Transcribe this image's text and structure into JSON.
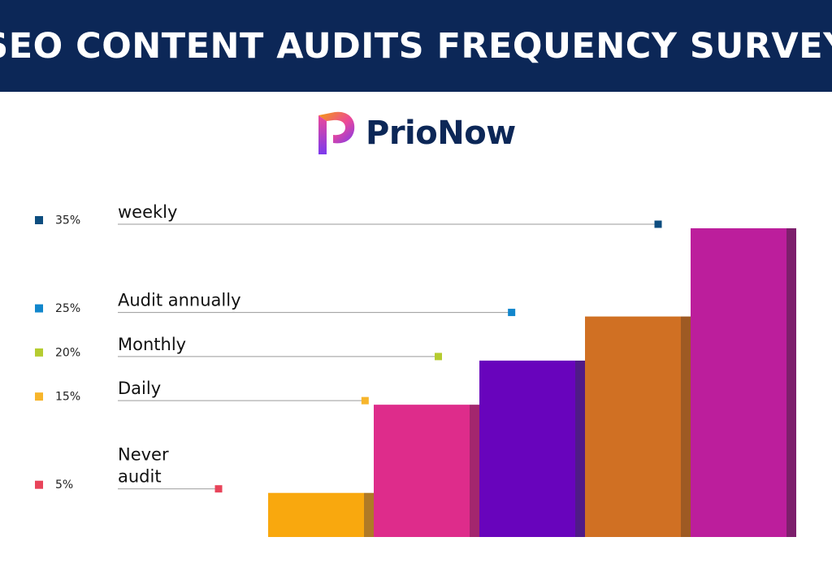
{
  "header": {
    "title": "SEO CONTENT AUDITS FREQUENCY SURVEY"
  },
  "brand": {
    "name": "PrioNow",
    "logo_icon": "prionow-logo-icon",
    "logo_colors": [
      "#f59e0b",
      "#ec4899",
      "#7c3aed"
    ]
  },
  "chart_data": {
    "type": "bar",
    "title": "",
    "xlabel": "",
    "ylabel": "",
    "ylim": [
      0,
      35
    ],
    "grid": false,
    "legend": "left",
    "categories": [
      "Never audit",
      "Daily",
      "Monthly",
      "Audit annually",
      "weekly"
    ],
    "values": [
      5,
      15,
      20,
      25,
      35
    ],
    "value_labels": [
      "5%",
      "15%",
      "20%",
      "25%",
      "35%"
    ],
    "label_lines": [
      [
        "Never",
        "audit"
      ],
      [
        "Daily"
      ],
      [
        "Monthly"
      ],
      [
        "Audit annually"
      ],
      [
        "weekly"
      ]
    ],
    "bar_colors": [
      "#f9a80e",
      "#de2c8b",
      "#6804bc",
      "#d07023",
      "#bc1e9c"
    ],
    "side_colors": [
      "#b07a26",
      "#a3266e",
      "#4f1a87",
      "#9e5a23",
      "#7d1f6c"
    ],
    "marker_colors": [
      "#e8445a",
      "#f7b52b",
      "#b5cc30",
      "#1186cc",
      "#0d4d7f"
    ]
  }
}
